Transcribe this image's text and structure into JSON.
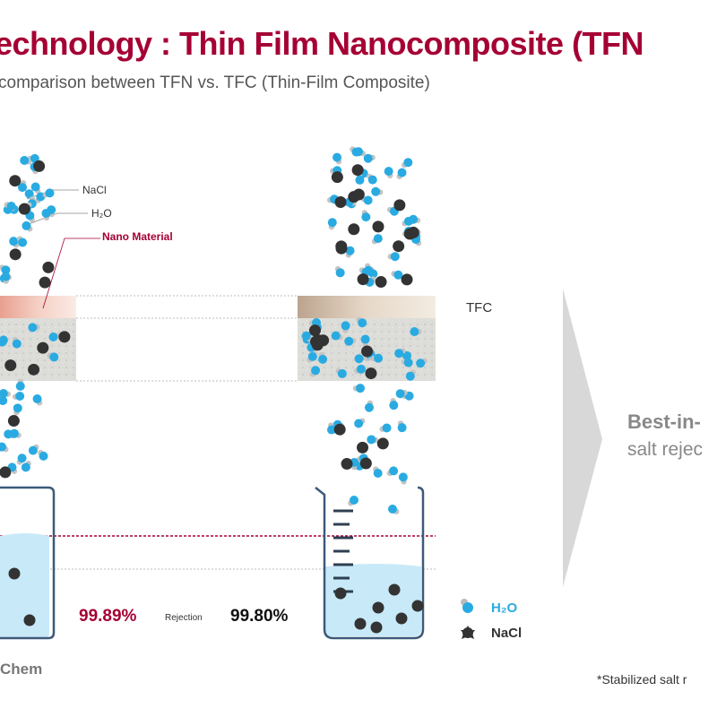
{
  "header": {
    "title": "echnology : Thin Film Nanocomposite (TFN",
    "subtitle": "comparison between TFN vs. TFC (Thin-Film Composite)"
  },
  "labels": {
    "nacl": "NaCl",
    "h2o": "H₂O",
    "nano_material": "Nano Material",
    "tfc": "TFC",
    "rejection": "Rejection"
  },
  "results": {
    "tfn_rejection": "99.89%",
    "tfc_rejection": "99.80%"
  },
  "legend": {
    "h2o": "H₂O",
    "nacl": "NaCl"
  },
  "callout": {
    "line1": "Best-in-",
    "line2": "salt rejec"
  },
  "footnote": "*Stabilized salt r",
  "brand": "Chem",
  "colors": {
    "accent": "#a50034",
    "water": "#29abe2",
    "salt": "#333333",
    "water_fill": "#c8e9f8"
  }
}
